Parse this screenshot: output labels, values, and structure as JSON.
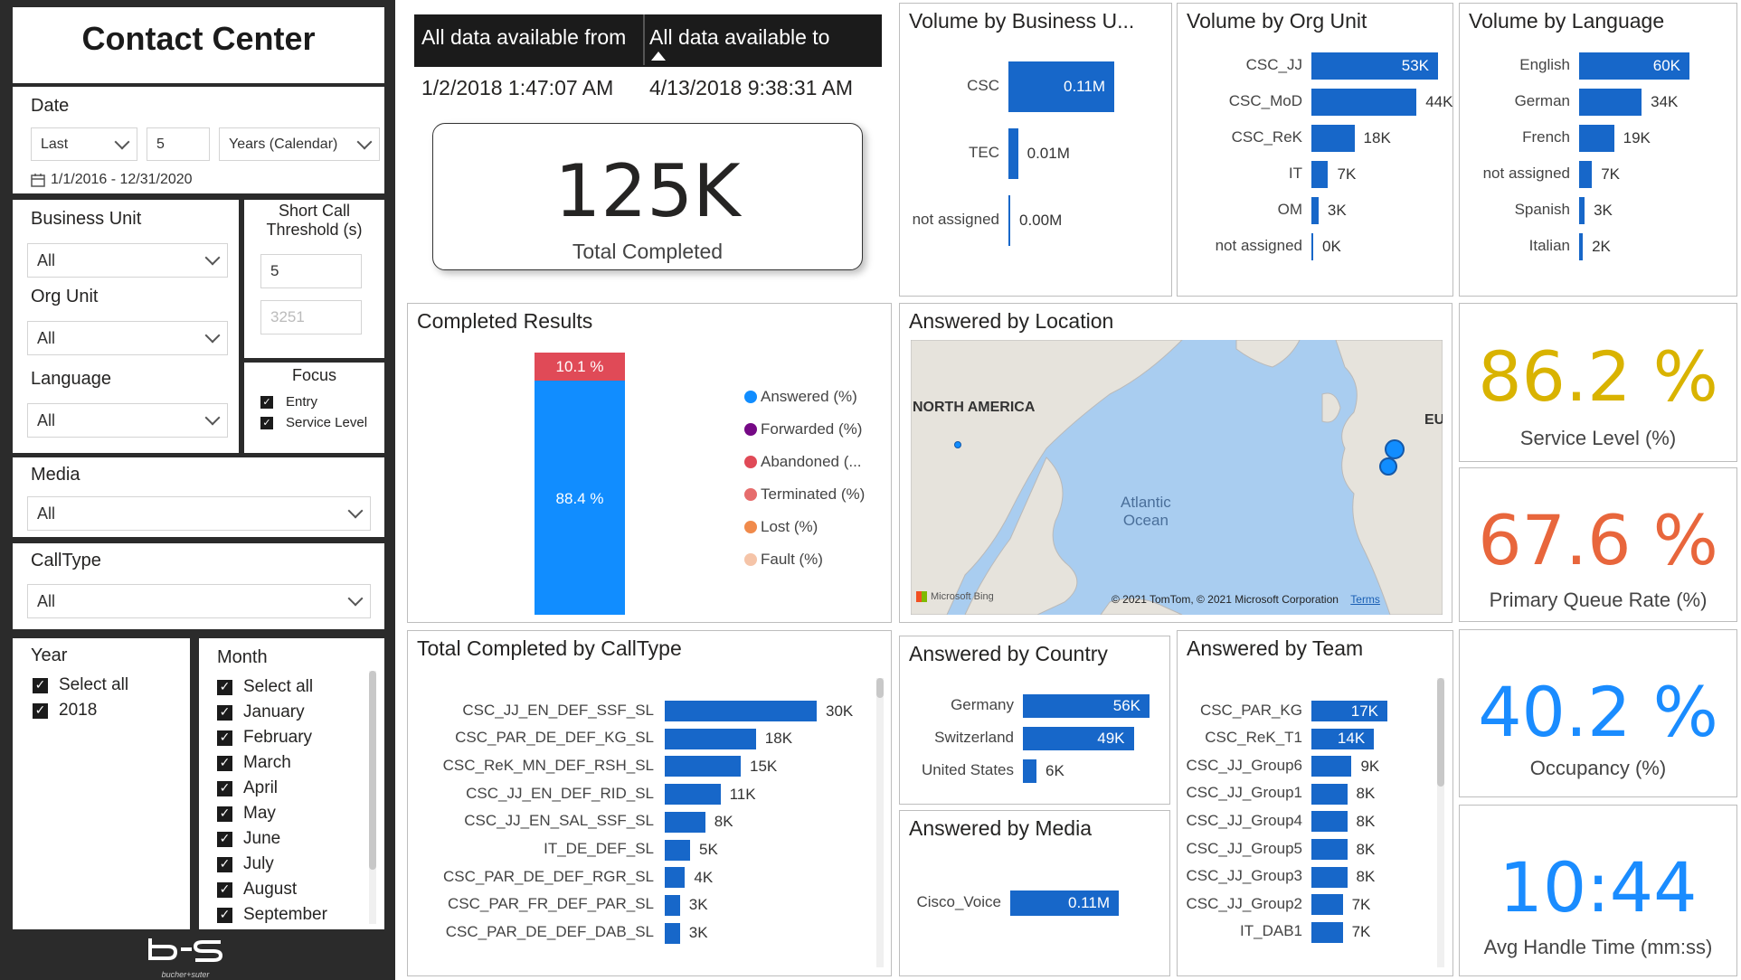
{
  "app": {
    "title": "Contact Center",
    "logo_text": "bucher+suter"
  },
  "filters": {
    "date": {
      "label": "Date",
      "relative": "Last",
      "count": "5",
      "unit": "Years (Calendar)",
      "range": "1/1/2016 - 12/31/2020"
    },
    "business_unit": {
      "label": "Business Unit",
      "value": "All"
    },
    "org_unit": {
      "label": "Org Unit",
      "value": "All"
    },
    "language": {
      "label": "Language",
      "value": "All"
    },
    "media": {
      "label": "Media",
      "value": "All"
    },
    "calltype": {
      "label": "CallType",
      "value": "All"
    },
    "short_call": {
      "label": "Short Call Threshold (s)",
      "value": "5",
      "placeholder": "3251"
    },
    "focus": {
      "label": "Focus",
      "items": [
        "Entry",
        "Service Level"
      ]
    },
    "year": {
      "label": "Year",
      "items": [
        "Select all",
        "2018"
      ]
    },
    "month": {
      "label": "Month",
      "items": [
        "Select all",
        "January",
        "February",
        "March",
        "April",
        "May",
        "June",
        "July",
        "August",
        "September"
      ]
    }
  },
  "header": {
    "from_label": "All data available from",
    "to_label": "All data available to",
    "from_value": "1/2/2018 1:47:07 AM",
    "to_value": "4/13/2018 9:38:31 AM"
  },
  "kpis": {
    "total_completed": {
      "value": "125K",
      "label": "Total Completed"
    },
    "service_level": {
      "value": "86.2 %",
      "label": "Service Level (%)",
      "color": "#d9b300"
    },
    "primary_queue": {
      "value": "67.6 %",
      "label": "Primary Queue Rate (%)",
      "color": "#e8663c"
    },
    "occupancy": {
      "value": "40.2 %",
      "label": "Occupancy (%)",
      "color": "#1a8cff"
    },
    "aht": {
      "value": "10:44",
      "label": "Avg Handle Time (mm:ss)",
      "color": "#1a8cff"
    }
  },
  "map": {
    "title": "Answered by Location",
    "region_label": "NORTH AMERICA",
    "region_label_2": "EU",
    "ocean_label_1": "Atlantic",
    "ocean_label_2": "Ocean",
    "provider": "Microsoft Bing",
    "copyright": "© 2021 TomTom, © 2021 Microsoft Corporation",
    "terms": "Terms"
  },
  "chart_data": [
    {
      "id": "bu",
      "type": "bar",
      "title": "Volume by Business U...",
      "categories": [
        "CSC",
        "TEC",
        "not assigned"
      ],
      "values": [
        0.11,
        0.01,
        0.0
      ],
      "labels": [
        "0.11M",
        "0.01M",
        "0.00M"
      ],
      "unit": "M"
    },
    {
      "id": "org",
      "type": "bar",
      "title": "Volume by Org Unit",
      "categories": [
        "CSC_JJ",
        "CSC_MoD",
        "CSC_ReK",
        "IT",
        "OM",
        "not assigned"
      ],
      "values": [
        53,
        44,
        18,
        7,
        3,
        0
      ],
      "labels": [
        "53K",
        "44K",
        "18K",
        "7K",
        "3K",
        "0K"
      ],
      "unit": "K"
    },
    {
      "id": "lang",
      "type": "bar",
      "title": "Volume by Language",
      "categories": [
        "English",
        "German",
        "French",
        "not assigned",
        "Spanish",
        "Italian"
      ],
      "values": [
        60,
        34,
        19,
        7,
        3,
        2
      ],
      "labels": [
        "60K",
        "34K",
        "19K",
        "7K",
        "3K",
        "2K"
      ],
      "unit": "K"
    },
    {
      "id": "results",
      "type": "bar",
      "title": "Completed Results",
      "stacked": true,
      "series": [
        {
          "name": "Answered (%)",
          "value": 88.4,
          "label": "88.4 %",
          "color": "#118dff"
        },
        {
          "name": "Forwarded (%)",
          "value": 0,
          "color": "#750985"
        },
        {
          "name": "Abandoned (...",
          "value": 10.1,
          "label": "10.1 %",
          "color": "#e04a57"
        },
        {
          "name": "Terminated (%)",
          "value": 0,
          "color": "#e66c6c"
        },
        {
          "name": "Lost (%)",
          "value": 0,
          "color": "#f08a4b"
        },
        {
          "name": "Fault (%)",
          "value": 0,
          "color": "#f5c4a8"
        }
      ]
    },
    {
      "id": "calltype",
      "type": "bar",
      "title": "Total Completed by CallType",
      "categories": [
        "CSC_JJ_EN_DEF_SSF_SL",
        "CSC_PAR_DE_DEF_KG_SL",
        "CSC_ReK_MN_DEF_RSH_SL",
        "CSC_JJ_EN_DEF_RID_SL",
        "CSC_JJ_EN_SAL_SSF_SL",
        "IT_DE_DEF_SL",
        "CSC_PAR_DE_DEF_RGR_SL",
        "CSC_PAR_FR_DEF_PAR_SL",
        "CSC_PAR_DE_DEF_DAB_SL"
      ],
      "values": [
        30,
        18,
        15,
        11,
        8,
        5,
        4,
        3,
        3
      ],
      "labels": [
        "30K",
        "18K",
        "15K",
        "11K",
        "8K",
        "5K",
        "4K",
        "3K",
        "3K"
      ],
      "unit": "K"
    },
    {
      "id": "country",
      "type": "bar",
      "title": "Answered by Country",
      "categories": [
        "Germany",
        "Switzerland",
        "United States"
      ],
      "values": [
        56,
        49,
        6
      ],
      "labels": [
        "56K",
        "49K",
        "6K"
      ],
      "unit": "K"
    },
    {
      "id": "media",
      "type": "bar",
      "title": "Answered by Media",
      "categories": [
        "Cisco_Voice"
      ],
      "values": [
        0.11
      ],
      "labels": [
        "0.11M"
      ],
      "unit": "M"
    },
    {
      "id": "team",
      "type": "bar",
      "title": "Answered by Team",
      "categories": [
        "CSC_PAR_KG",
        "CSC_ReK_T1",
        "CSC_JJ_Group6",
        "CSC_JJ_Group1",
        "CSC_JJ_Group4",
        "CSC_JJ_Group5",
        "CSC_JJ_Group3",
        "CSC_JJ_Group2",
        "IT_DAB1"
      ],
      "values": [
        17,
        14,
        9,
        8,
        8,
        8,
        8,
        7,
        7
      ],
      "labels": [
        "17K",
        "14K",
        "9K",
        "8K",
        "8K",
        "8K",
        "8K",
        "7K",
        "7K"
      ],
      "unit": "K"
    }
  ]
}
